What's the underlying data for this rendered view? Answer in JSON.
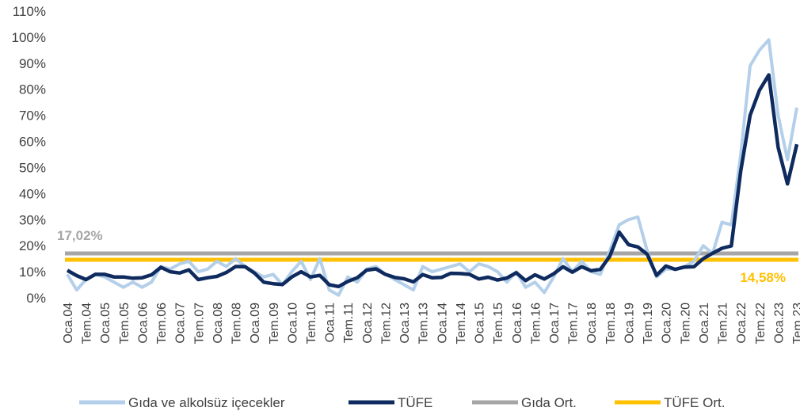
{
  "chart_data": {
    "type": "line",
    "categories": [
      "Oca.04",
      null,
      "Tem.04",
      null,
      "Oca.05",
      null,
      "Tem.05",
      null,
      "Oca.06",
      null,
      "Tem.06",
      null,
      "Oca.07",
      null,
      "Tem.07",
      null,
      "Oca.08",
      null,
      "Tem.08",
      null,
      "Oca.09",
      null,
      "Tem.09",
      null,
      "Oca.10",
      null,
      "Tem.10",
      null,
      "Oca.11",
      null,
      "Tem.11",
      null,
      "Oca.12",
      null,
      "Tem.12",
      null,
      "Oca.13",
      null,
      "Tem.13",
      null,
      "Oca.14",
      null,
      "Tem.14",
      null,
      "Oca.15",
      null,
      "Tem.15",
      null,
      "Oca.16",
      null,
      "Tem.16",
      null,
      "Oca.17",
      null,
      "Tem.17",
      null,
      "Oca.18",
      null,
      "Tem.18",
      null,
      "Oca.19",
      null,
      "Tem.19",
      null,
      "Oca.20",
      null,
      "Tem.20",
      null,
      "Oca.21",
      null,
      "Tem.21",
      null,
      "Oca.22",
      null,
      "Tem.22",
      null,
      "Oca.23",
      null,
      "Tem.23"
    ],
    "series": [
      {
        "name": "Gıda ve alkolsüz içecekler",
        "color": "#b4cfe9",
        "values": [
          9,
          3,
          7,
          9,
          8,
          6,
          4,
          6,
          4,
          6,
          12,
          11,
          13,
          14,
          10,
          11,
          14,
          12,
          15,
          12,
          10,
          8,
          9,
          5,
          10,
          14,
          7,
          15,
          3,
          1,
          8,
          6,
          11,
          12,
          9,
          7,
          5,
          3,
          12,
          10,
          11,
          12,
          13,
          10,
          13,
          12,
          10,
          6,
          10,
          4,
          6,
          2,
          8,
          15,
          10,
          14,
          10,
          9,
          18,
          28,
          30,
          31,
          18,
          8,
          11,
          11,
          12,
          14,
          20,
          17,
          29,
          28,
          55,
          89,
          95,
          99,
          70,
          53,
          73
        ]
      },
      {
        "name": "TÜFE",
        "color": "#0e2a5e",
        "values": [
          10.5,
          8.5,
          7,
          9,
          9,
          8,
          8,
          7.5,
          7.7,
          8.8,
          11.7,
          10,
          9.5,
          10.7,
          7,
          7.7,
          8.2,
          9.7,
          12,
          11.9,
          9.5,
          6,
          5.4,
          5.1,
          8,
          10,
          8,
          8.6,
          5,
          4.3,
          6.3,
          7.7,
          10.6,
          11.1,
          9,
          7.8,
          7.3,
          6.1,
          8.9,
          7.7,
          7.8,
          9.4,
          9.3,
          9,
          7.2,
          7.9,
          6.8,
          7.6,
          9.6,
          6.6,
          8.8,
          7.2,
          9.2,
          11.9,
          9.8,
          11.9,
          10.4,
          10.9,
          15.9,
          25.2,
          20.4,
          19.5,
          16.7,
          8.6,
          12.2,
          10.9,
          11.8,
          11.9,
          15,
          17.1,
          19,
          19.9,
          48.7,
          70,
          79.6,
          85.5,
          57.7,
          43.7,
          58.9
        ]
      }
    ],
    "averages": [
      {
        "name": "Gıda Ort.",
        "color": "#a6a6a6",
        "value": 17.02,
        "value_label": "17,02%"
      },
      {
        "name": "TÜFE Ort.",
        "color": "#ffc000",
        "value": 14.58,
        "value_label": "14,58%"
      }
    ],
    "ylim": [
      0,
      110
    ],
    "yticks": [
      {
        "value": 0,
        "label": "0%"
      },
      {
        "value": 10,
        "label": "10%"
      },
      {
        "value": 20,
        "label": "20%"
      },
      {
        "value": 30,
        "label": "30%"
      },
      {
        "value": 40,
        "label": "40%"
      },
      {
        "value": 50,
        "label": "50%"
      },
      {
        "value": 60,
        "label": "60%"
      },
      {
        "value": 70,
        "label": "70%"
      },
      {
        "value": 80,
        "label": "80%"
      },
      {
        "value": 90,
        "label": "90%"
      },
      {
        "value": 100,
        "label": "100%"
      },
      {
        "value": 110,
        "label": "110%"
      }
    ],
    "legend": "bottom"
  }
}
